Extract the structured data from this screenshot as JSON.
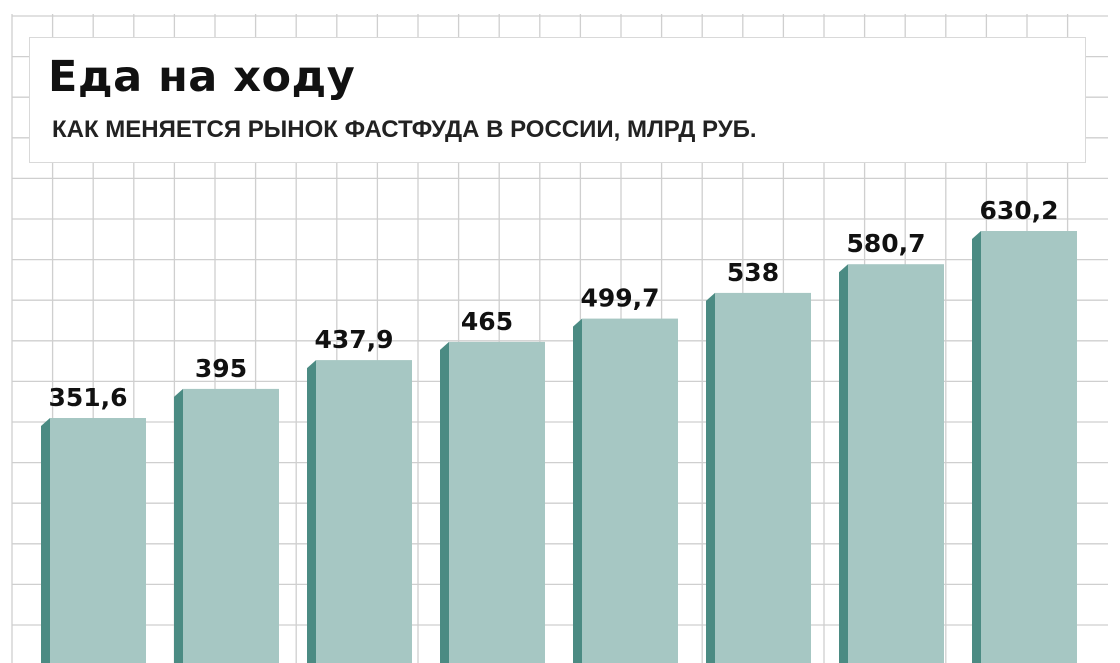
{
  "chart_data": {
    "type": "bar",
    "title": "Еда на ходу",
    "subtitle": "КАК МЕНЯЕТСЯ РЫНОК ФАСТФУДА В РОССИИ, МЛРД РУБ.",
    "categories": [
      "",
      "",
      "",
      "",
      "",
      "",
      "",
      ""
    ],
    "values": [
      351.6,
      395,
      437.9,
      465,
      499.7,
      538,
      580.7,
      630.2
    ],
    "value_labels": [
      "351,6",
      "395",
      "437,9",
      "465",
      "499,7",
      "538",
      "580,7",
      "630,2"
    ],
    "grid": true,
    "colors": {
      "bar_front": "#a6c7c3",
      "bar_side": "#4b8b83",
      "grid": "#cfcfcf"
    }
  }
}
